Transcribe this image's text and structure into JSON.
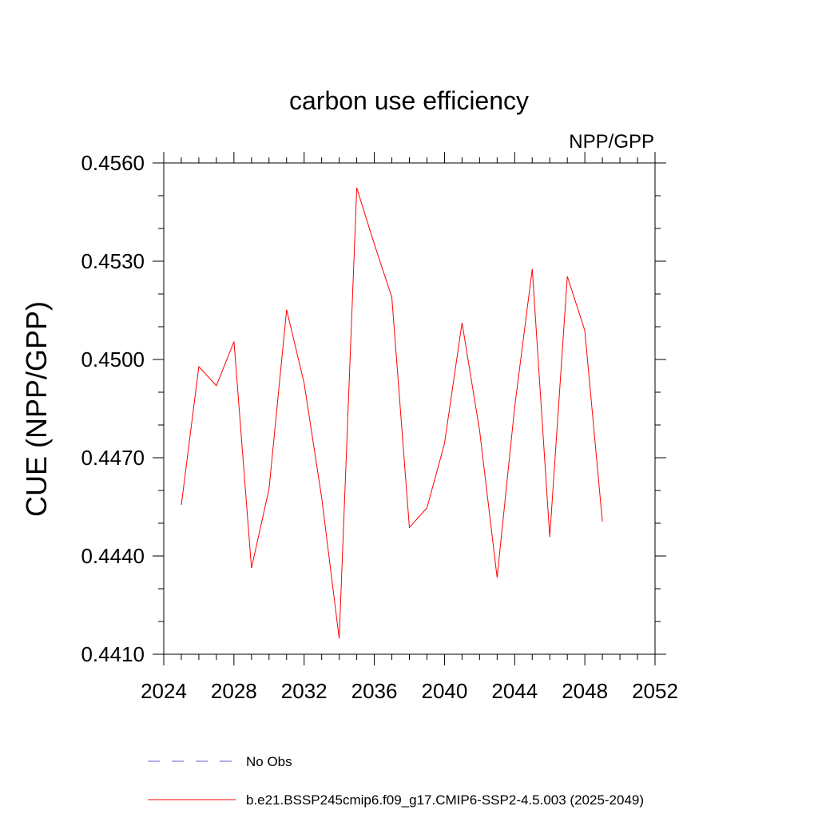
{
  "chart_data": {
    "type": "line",
    "title": "carbon use efficiency",
    "subtitle": "NPP/GPP",
    "xlabel": "",
    "ylabel": "CUE  (NPP/GPP)",
    "xlim": [
      2024,
      2052
    ],
    "ylim": [
      0.441,
      0.456
    ],
    "x_ticks": [
      2024,
      2028,
      2032,
      2036,
      2040,
      2044,
      2048,
      2052
    ],
    "y_ticks": [
      "0.4410",
      "0.4440",
      "0.4470",
      "0.4500",
      "0.4530",
      "0.4560"
    ],
    "grid": false,
    "legend_position": "bottom",
    "series": [
      {
        "name": "b.e21.BSSP245cmip6.f09_g17.CMIP6-SSP2-4.5.003 (2025-2049)",
        "color": "#ff0000",
        "style": "solid",
        "x": [
          2025,
          2026,
          2027,
          2028,
          2029,
          2030,
          2031,
          2032,
          2033,
          2034,
          2035,
          2036,
          2037,
          2038,
          2039,
          2040,
          2041,
          2042,
          2043,
          2044,
          2045,
          2046,
          2047,
          2048,
          2049
        ],
        "values": [
          0.44556,
          0.44978,
          0.4492,
          0.45055,
          0.44363,
          0.44605,
          0.45152,
          0.44928,
          0.44578,
          0.44148,
          0.45524,
          0.45352,
          0.4519,
          0.44487,
          0.44547,
          0.44743,
          0.45112,
          0.44783,
          0.44334,
          0.44855,
          0.45276,
          0.44458,
          0.45254,
          0.45088,
          0.44505
        ]
      }
    ],
    "legend": [
      {
        "label": "No Obs",
        "color": "#6a5acd",
        "style": "dashed"
      },
      {
        "label": "b.e21.BSSP245cmip6.f09_g17.CMIP6-SSP2-4.5.003 (2025-2049)",
        "color": "#ff0000",
        "style": "solid"
      }
    ]
  }
}
